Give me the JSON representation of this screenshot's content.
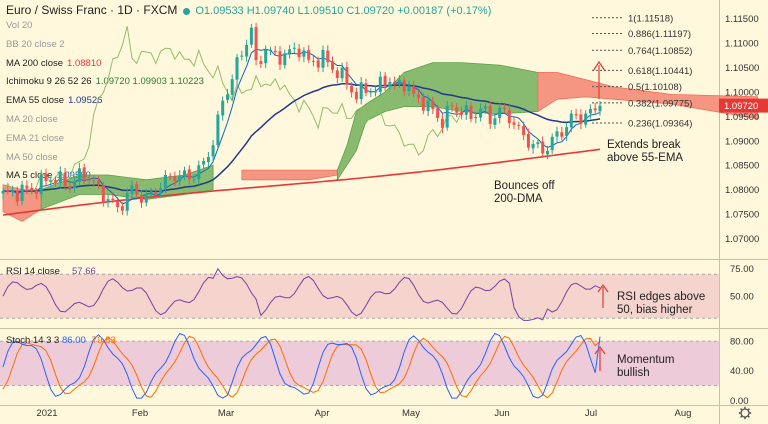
{
  "header": {
    "symbol": "Euro / Swiss Franc · 1D · FXCM",
    "ohlc": "O1.09533 H1.09740 L1.09510 C1.09720 +0.00187 (+0.17%)"
  },
  "indicators": [
    {
      "label": "Vol 20",
      "value": "",
      "faded": true
    },
    {
      "label": "BB 20 close 2",
      "value": "",
      "faded": true
    },
    {
      "label": "MA 200 close",
      "value": "1.08810",
      "color": "#e53935"
    },
    {
      "label": "Ichimoku 9 26 52 26",
      "value": "1.09720 1.09903 1.10223",
      "color": "#2e7d32"
    },
    {
      "label": "EMA 55 close",
      "value": "1.09526",
      "color": "#1e3a8a"
    },
    {
      "label": "MA 20 close",
      "value": "",
      "faded": true
    },
    {
      "label": "EMA 21 close",
      "value": "",
      "faded": true
    },
    {
      "label": "MA 50 close",
      "value": "",
      "faded": true
    },
    {
      "label": "MA 5 close",
      "value": "1.09560",
      "color": "#1565c0"
    }
  ],
  "chart_data": [
    {
      "type": "candlestick",
      "x_ticks": [
        "2021",
        "Feb",
        "Mar",
        "Apr",
        "May",
        "Jun",
        "Jul",
        "Aug"
      ],
      "y_ticks": [
        "1.11500",
        "1.11000",
        "1.10500",
        "1.10000",
        "1.09500",
        "1.09000",
        "1.08500",
        "1.08000",
        "1.07500",
        "1.07000"
      ],
      "ylim": [
        1.066,
        1.118
      ],
      "last_price": "1.09720",
      "fibonacci": [
        {
          "label": "1(1.11518)",
          "value": 1.11518
        },
        {
          "label": "0.886(1.11197)",
          "value": 1.11197
        },
        {
          "label": "0.764(1.10852)",
          "value": 1.10852
        },
        {
          "label": "0.618(1.10441)",
          "value": 1.10441
        },
        {
          "label": "0.5(1.10108)",
          "value": 1.10108
        },
        {
          "label": "0.382(1.09775)",
          "value": 1.09775
        },
        {
          "label": "0.236(1.09364)",
          "value": 1.09364
        }
      ],
      "annotations": [
        {
          "text": [
            "Extends break",
            "above 55-EMA"
          ]
        },
        {
          "text": [
            "Bounces off",
            "200-DMA"
          ]
        }
      ]
    },
    {
      "type": "line",
      "title": "RSI 14 close",
      "value_label": "57.66",
      "y_ticks": [
        "75.00",
        "50.00"
      ],
      "ylim": [
        22,
        82
      ],
      "band": [
        30,
        70
      ],
      "annotation": [
        "RSI edges above",
        "50, bias higher"
      ]
    },
    {
      "type": "line",
      "title": "Stoch 14 3 3",
      "value_labels": [
        "86.00",
        "79.83"
      ],
      "y_ticks": [
        "80.00",
        "40.00",
        "0.00"
      ],
      "ylim": [
        -5,
        95
      ],
      "band": [
        20,
        80
      ],
      "annotation": [
        "Momentum",
        "bullish"
      ]
    }
  ],
  "colors": {
    "bg": "#fff8dc",
    "up": "#26a69a",
    "down": "#ef5350",
    "cloud_bull": "#5aa246",
    "cloud_bear": "#f0705f",
    "ma200": "#e53935",
    "ema55": "#1e3a8a",
    "ma5": "#1565c0",
    "rsi": "#7b3fa0",
    "stoch_k": "#2962ff",
    "stoch_d": "#ff6d00",
    "annotation": "#222222"
  }
}
